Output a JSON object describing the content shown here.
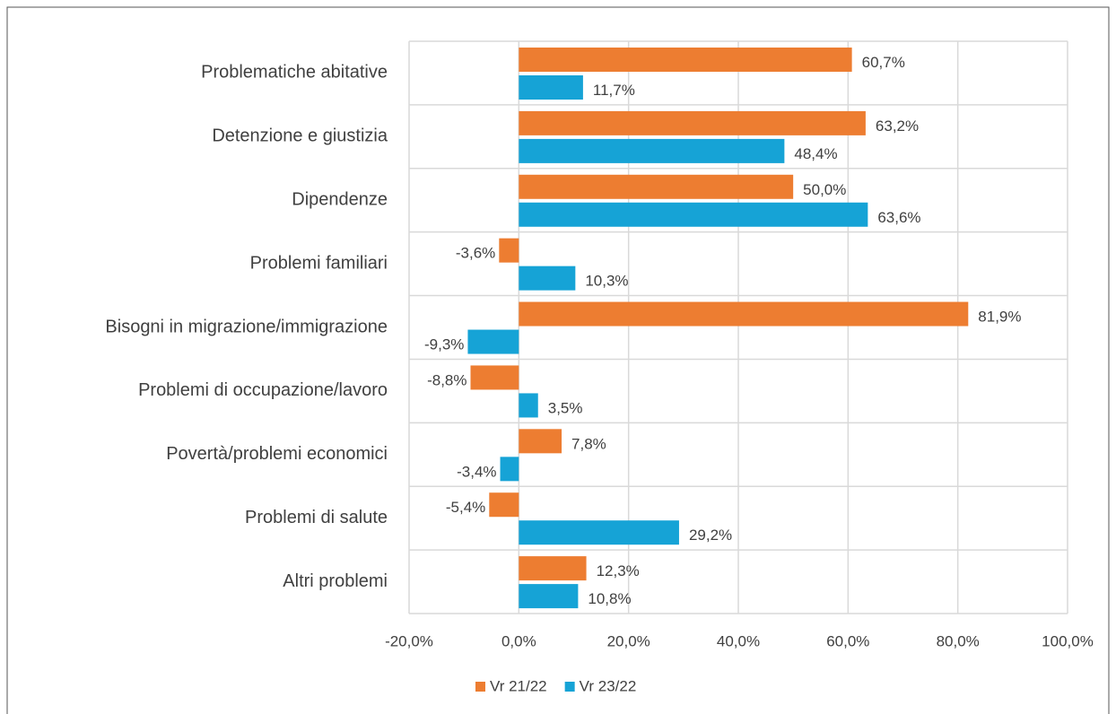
{
  "chart_data": {
    "type": "barh",
    "categories": [
      "Problematiche abitative",
      "Detenzione e giustizia",
      "Dipendenze",
      "Problemi familiari",
      "Bisogni in migrazione/immigrazione",
      "Problemi di occupazione/lavoro",
      "Povertà/problemi economici",
      "Problemi di salute",
      "Altri problemi"
    ],
    "series": [
      {
        "name": "Vr 21/22",
        "color": "#ed7d31",
        "values": [
          60.7,
          63.2,
          50.0,
          -3.6,
          81.9,
          -8.8,
          7.8,
          -5.4,
          12.3
        ],
        "value_labels": [
          "60,7%",
          "63,2%",
          "50,0%",
          "-3,6%",
          "81,9%",
          "-8,8%",
          "7,8%",
          "-5,4%",
          "12,3%"
        ]
      },
      {
        "name": "Vr 23/22",
        "color": "#16a3d6",
        "values": [
          11.7,
          48.4,
          63.6,
          10.3,
          -9.3,
          3.5,
          -3.4,
          29.2,
          10.8
        ],
        "value_labels": [
          "11,7%",
          "48,4%",
          "63,6%",
          "10,3%",
          "-9,3%",
          "3,5%",
          "-3,4%",
          "29,2%",
          "10,8%"
        ]
      }
    ],
    "xlim": [
      -20,
      100
    ],
    "xticks": [
      {
        "value": -20,
        "label": "-20,0%"
      },
      {
        "value": 0,
        "label": "0,0%"
      },
      {
        "value": 20,
        "label": "20,0%"
      },
      {
        "value": 40,
        "label": "40,0%"
      },
      {
        "value": 60,
        "label": "60,0%"
      },
      {
        "value": 80,
        "label": "80,0%"
      },
      {
        "value": 100,
        "label": "100,0%"
      }
    ],
    "grid": true,
    "legend": "bottom"
  }
}
